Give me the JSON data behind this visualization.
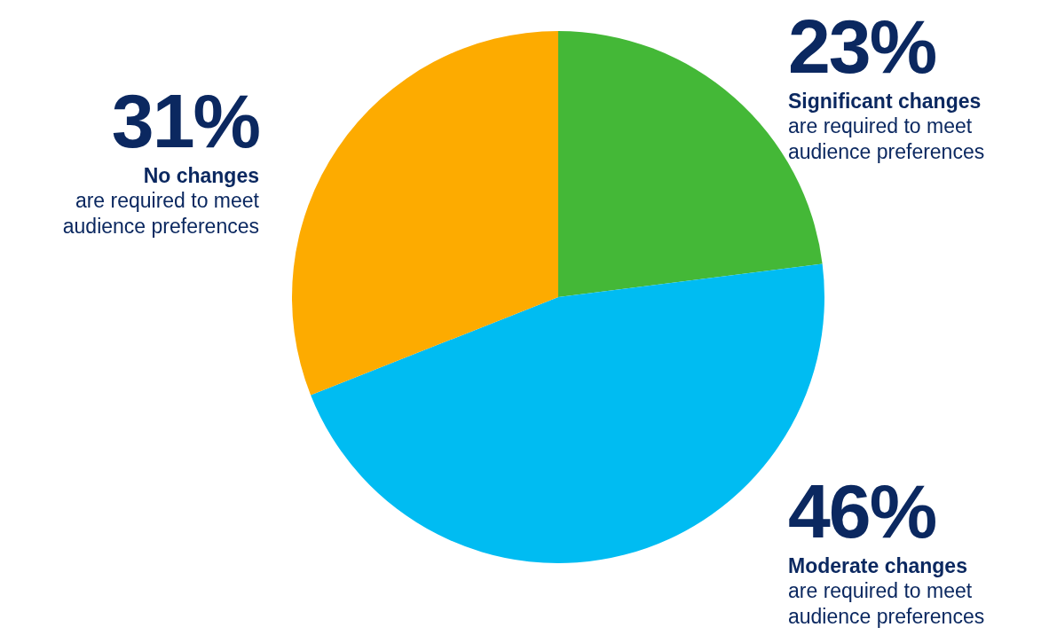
{
  "chart_data": {
    "type": "pie",
    "categories": [
      "Significant changes",
      "Moderate changes",
      "No changes"
    ],
    "values": [
      23,
      46,
      31
    ],
    "colors": [
      "#44b837",
      "#00bcf2",
      "#fdab00"
    ],
    "value_labels": [
      "23%",
      "46%",
      "31%"
    ],
    "annotations": [
      "are required to meet audience preferences",
      "are required to meet audience preferences",
      "are required to meet audience preferences"
    ]
  }
}
